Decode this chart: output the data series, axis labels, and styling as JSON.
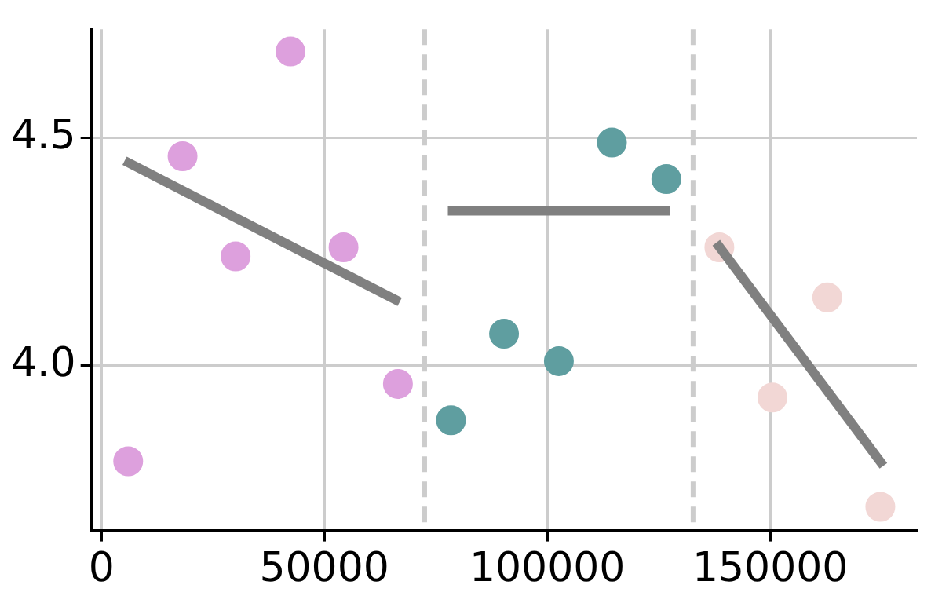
{
  "chart_data": {
    "type": "scatter",
    "xlim": [
      -2200,
      182900
    ],
    "ylim": [
      3.638,
      4.739
    ],
    "xticks": [
      0,
      50000,
      100000,
      150000
    ],
    "yticks": [
      {
        "value": 4,
        "label": "4.0"
      },
      4.5
    ],
    "grid": true,
    "legend": false,
    "series": [
      {
        "type": "scatter",
        "marker": "circle",
        "color": "#dda0dd",
        "x": [
          6000,
          18200,
          30100,
          42400,
          54300,
          66500
        ],
        "values": [
          3.79,
          4.46,
          4.24,
          4.69,
          4.26,
          3.96
        ]
      },
      {
        "type": "scatter",
        "marker": "circle",
        "color": "#5f9ea0",
        "x": [
          78400,
          90300,
          102600,
          114500,
          126700
        ],
        "values": [
          3.88,
          4.07,
          4.01,
          4.49,
          4.41
        ]
      },
      {
        "type": "scatter",
        "marker": "circle",
        "color": "#f2d7d5",
        "x": [
          138600,
          150500,
          162800,
          174700
        ],
        "values": [
          4.26,
          3.93,
          4.15,
          3.69
        ]
      },
      {
        "type": "line",
        "marker": "none",
        "color": "#808080",
        "x": [
          5200,
          66900
        ],
        "values": [
          4.45,
          4.14
        ]
      },
      {
        "type": "line",
        "marker": "none",
        "color": "#808080",
        "x": [
          77700,
          127500
        ],
        "values": [
          4.34,
          4.34
        ]
      },
      {
        "type": "line",
        "marker": "none",
        "color": "#808080",
        "x": [
          137900,
          175400
        ],
        "values": [
          4.27,
          3.78
        ]
      }
    ],
    "ref_lines": [
      {
        "axis": "x",
        "value": 72500,
        "color": "#cccccc",
        "line_style": "dashed"
      },
      {
        "axis": "x",
        "value": 132700,
        "color": "#cccccc",
        "line_style": "dashed"
      }
    ]
  }
}
